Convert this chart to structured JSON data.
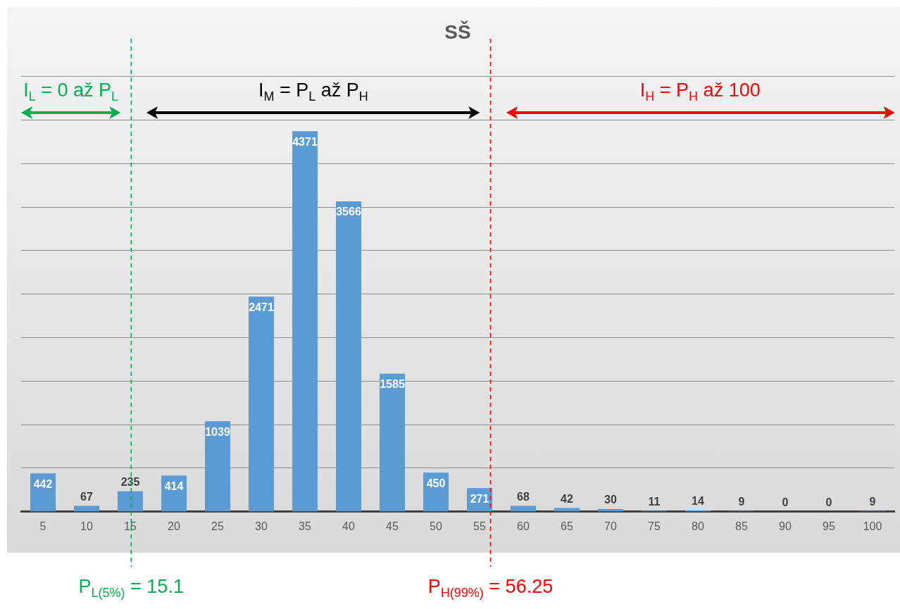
{
  "chart_data": {
    "type": "bar",
    "title": "SŠ",
    "x": [
      5,
      10,
      15,
      20,
      25,
      30,
      35,
      40,
      45,
      50,
      55,
      60,
      65,
      70,
      75,
      80,
      85,
      90,
      95,
      100
    ],
    "values": [
      442,
      67,
      235,
      414,
      1039,
      2471,
      4371,
      3566,
      1585,
      450,
      271,
      68,
      42,
      30,
      11,
      14,
      9,
      0,
      0,
      9
    ],
    "color": "#5b9bd5",
    "xlim": [
      2.5,
      102.5
    ],
    "xticks": [
      5,
      10,
      15,
      20,
      25,
      30,
      35,
      40,
      45,
      50,
      55,
      60,
      65,
      70,
      75,
      80,
      85,
      90,
      95,
      100
    ],
    "ylim": [
      0,
      5000
    ],
    "yticks": [
      {
        "value": 0,
        "label": null
      },
      {
        "value": 500,
        "label": null
      },
      {
        "value": 1000,
        "label": null
      },
      {
        "value": 1500,
        "label": null
      },
      {
        "value": 2000,
        "label": null
      },
      {
        "value": 2500,
        "label": null
      },
      {
        "value": 3000,
        "label": null
      },
      {
        "value": 3500,
        "label": null
      },
      {
        "value": 4000,
        "label": null
      },
      {
        "value": 4500,
        "label": null
      },
      {
        "value": 5000,
        "label": null
      }
    ],
    "grid": "y",
    "tick_labels": "x",
    "data_labels": true,
    "ref_lines": [
      {
        "axis": "x",
        "value": 15.1,
        "label": "P$_{L(5%)}$ = 15.1",
        "color": "#00b050",
        "line_style": "dashed"
      },
      {
        "axis": "x",
        "value": 56.25,
        "label": "P$_{H(99%)}$ = 56.25",
        "color": "#ff0000",
        "line_style": "dashed"
      }
    ],
    "annotations": [
      "I$_{L}$ = 0 až P$_{L}$",
      "I$_{M}$ = P$_{L}$ až P$_{H}$",
      "I$_{H}$ = P$_{H}$ až 100"
    ]
  }
}
